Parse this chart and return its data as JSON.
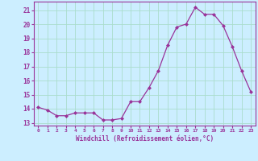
{
  "x": [
    0,
    1,
    2,
    3,
    4,
    5,
    6,
    7,
    8,
    9,
    10,
    11,
    12,
    13,
    14,
    15,
    16,
    17,
    18,
    19,
    20,
    21,
    22,
    23
  ],
  "y": [
    14.1,
    13.9,
    13.5,
    13.5,
    13.7,
    13.7,
    13.7,
    13.2,
    13.2,
    13.3,
    14.5,
    14.5,
    15.5,
    16.7,
    18.5,
    19.8,
    20.0,
    21.2,
    20.7,
    20.7,
    19.9,
    18.4,
    16.7,
    15.2
  ],
  "line_color": "#993399",
  "marker": "D",
  "marker_size": 2.0,
  "bg_color": "#cceeff",
  "grid_color": "#aaddcc",
  "xlabel": "Windchill (Refroidissement éolien,°C)",
  "xlabel_color": "#993399",
  "tick_color": "#993399",
  "ylim": [
    12.8,
    21.6
  ],
  "yticks": [
    13,
    14,
    15,
    16,
    17,
    18,
    19,
    20,
    21
  ],
  "xticks": [
    0,
    1,
    2,
    3,
    4,
    5,
    6,
    7,
    8,
    9,
    10,
    11,
    12,
    13,
    14,
    15,
    16,
    17,
    18,
    19,
    20,
    21,
    22,
    23
  ],
  "spine_color": "#993399",
  "figsize": [
    3.2,
    2.0
  ],
  "dpi": 100
}
